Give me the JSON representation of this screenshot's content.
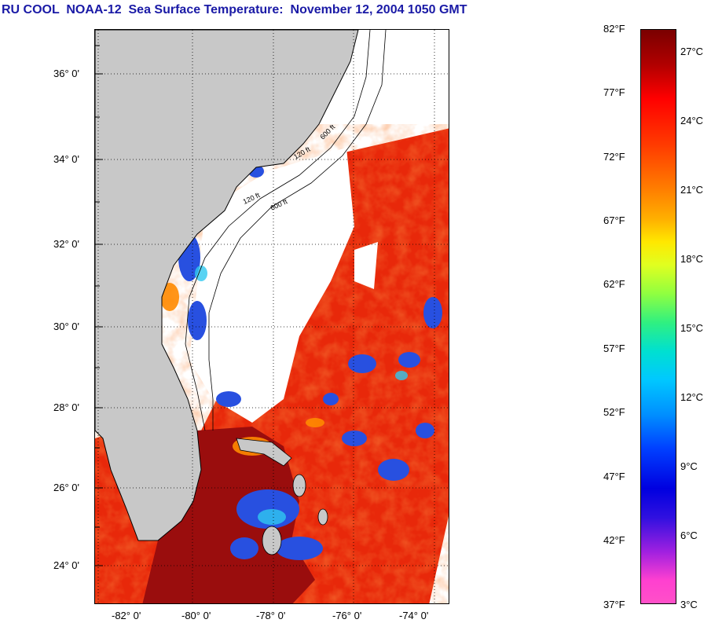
{
  "title": "RU COOL  NOAA-12  Sea Surface Temperature:  November 12, 2004 1050 GMT",
  "map": {
    "lat_labels": [
      "36° 0'",
      "34° 0'",
      "32° 0'",
      "30° 0'",
      "28° 0'",
      "26° 0'",
      "24° 0'"
    ],
    "lon_labels": [
      "-82° 0'",
      "-80° 0'",
      "-78° 0'",
      "-76° 0'",
      "-74° 0'"
    ],
    "contour_labels": [
      "120 ft",
      "600 ft",
      "120 ft",
      "600 ft"
    ],
    "colors": {
      "land": "#c8c8c8",
      "cloud": "#ffffff",
      "warm": "#e8280a",
      "hot": "#9a0d0d",
      "cool": "#2850e0"
    }
  },
  "colorbar": {
    "fahrenheit_labels": [
      "82°F",
      "77°F",
      "72°F",
      "67°F",
      "62°F",
      "57°F",
      "52°F",
      "47°F",
      "42°F",
      "37°F"
    ],
    "celsius_labels": [
      "27°C",
      "24°C",
      "21°C",
      "18°C",
      "15°C",
      "12°C",
      "9°C",
      "6°C",
      "3°C"
    ]
  }
}
